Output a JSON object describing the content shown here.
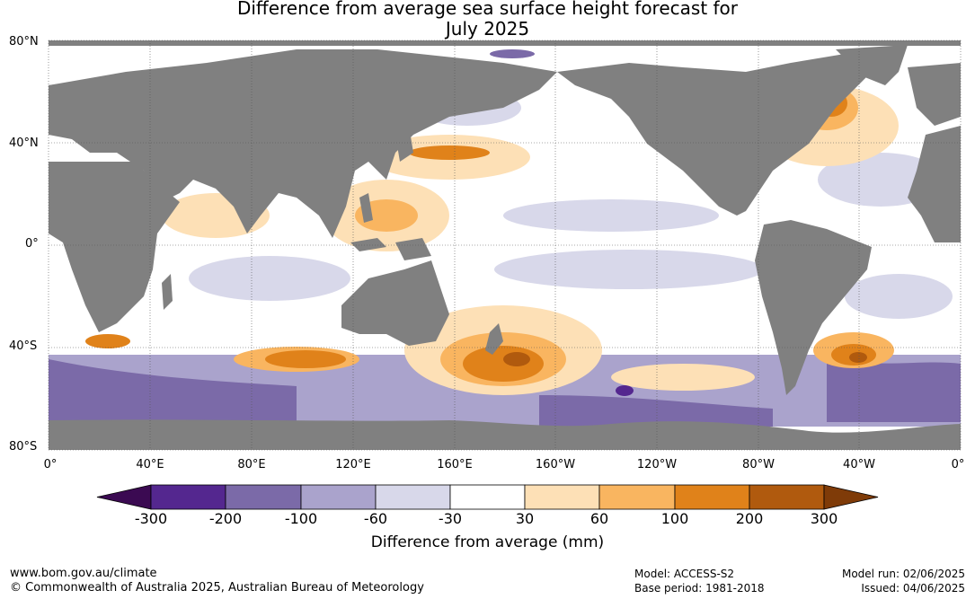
{
  "title": {
    "line1": "Difference from average sea surface height forecast for",
    "line2": "July 2025"
  },
  "map": {
    "lat_labels": [
      "80°N",
      "40°N",
      "0°",
      "40°S",
      "80°S"
    ],
    "lon_labels": [
      "0°",
      "40°E",
      "80°E",
      "120°E",
      "160°E",
      "160°W",
      "120°W",
      "80°W",
      "40°W",
      "0°"
    ],
    "land_color": "#808080",
    "grid": "dotted"
  },
  "colorbar": {
    "title": "Difference from average (mm)",
    "tick_labels": [
      "-300",
      "-200",
      "-100",
      "-60",
      "-30",
      "30",
      "60",
      "100",
      "200",
      "300"
    ],
    "colors": [
      "#3b0a52",
      "#54278f",
      "#7b6aa8",
      "#aaa3cc",
      "#d8d8ea",
      "#ffffff",
      "#fde0b6",
      "#f9b560",
      "#e0821a",
      "#b05a0e",
      "#7f3b08"
    ]
  },
  "footer": {
    "url": "www.bom.gov.au/climate",
    "copyright": "© Commonwealth of Australia 2025, Australian Bureau of Meteorology",
    "model": "Model: ACCESS-S2",
    "base_period": "Base period: 1981-2018",
    "model_run": "Model run: 02/06/2025",
    "issued": "Issued: 04/06/2025"
  }
}
